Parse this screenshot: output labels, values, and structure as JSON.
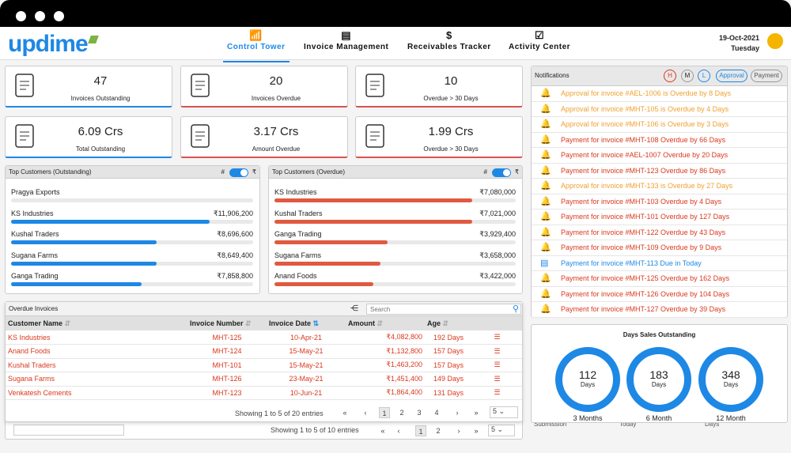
{
  "app": {
    "logo": "updime"
  },
  "nav": [
    {
      "label": "Control Tower",
      "icon": "tower-icon"
    },
    {
      "label": "Invoice Management",
      "icon": "invoice-icon"
    },
    {
      "label": "Receivables Tracker",
      "icon": "hand-money-icon"
    },
    {
      "label": "Activity Center",
      "icon": "checklist-icon"
    }
  ],
  "date": {
    "date": "19-Oct-2021",
    "day": "Tuesday"
  },
  "stats": [
    {
      "value": "47",
      "label": "Invoices Outstanding",
      "color": "#1e88e5"
    },
    {
      "value": "20",
      "label": "Invoices Overdue",
      "color": "#d9534f"
    },
    {
      "value": "10",
      "label": "Overdue > 30 Days",
      "color": "#d9534f"
    },
    {
      "value": "6.09 Crs",
      "label": "Total Outstanding",
      "color": "#1e88e5"
    },
    {
      "value": "3.17 Crs",
      "label": "Amount Overdue",
      "color": "#d9534f"
    },
    {
      "value": "1.99 Crs",
      "label": "Overdue > 30 Days",
      "color": "#d9534f"
    }
  ],
  "top_outstanding": {
    "title": "Top Customers (Outstanding)",
    "toggle_left": "#",
    "toggle_right": "₹",
    "rows": [
      {
        "name": "Pragya Exports",
        "value": "",
        "level": 0
      },
      {
        "name": "KS Industries",
        "value": "₹11,906,200",
        "level": 0.82
      },
      {
        "name": "Kushal Traders",
        "value": "₹8,696,600",
        "level": 0.6
      },
      {
        "name": "Sugana Farms",
        "value": "₹8,649,400",
        "level": 0.6
      },
      {
        "name": "Ganga Trading",
        "value": "₹7,858,800",
        "level": 0.54
      }
    ]
  },
  "top_overdue": {
    "title": "Top Customers (Overdue)",
    "toggle_left": "#",
    "toggle_right": "₹",
    "rows": [
      {
        "name": "KS Industries",
        "value": "₹7,080,000",
        "level": 0.82
      },
      {
        "name": "Kushal Traders",
        "value": "₹7,021,000",
        "level": 0.82
      },
      {
        "name": "Ganga Trading",
        "value": "₹3,929,400",
        "level": 0.47
      },
      {
        "name": "Sugana Farms",
        "value": "₹3,658,000",
        "level": 0.44
      },
      {
        "name": "Anand Foods",
        "value": "₹3,422,000",
        "level": 0.41
      }
    ]
  },
  "overdue_invoices": {
    "title": "Overdue Invoices",
    "search_placeholder": "Search",
    "columns": [
      "Customer Name",
      "Invoice Number",
      "Invoice Date",
      "Amount",
      "Age"
    ],
    "rows": [
      [
        "KS Industries",
        "MHT-125",
        "10-Apr-21",
        "₹4,082,800",
        "192 Days"
      ],
      [
        "Anand Foods",
        "MHT-124",
        "15-May-21",
        "₹1,132,800",
        "157 Days"
      ],
      [
        "Kushal Traders",
        "MHT-101",
        "15-May-21",
        "₹1,463,200",
        "157 Days"
      ],
      [
        "Sugana Farms",
        "MHT-126",
        "23-May-21",
        "₹1,451,400",
        "149 Days"
      ],
      [
        "Venkatesh Cements",
        "MHT-123",
        "10-Jun-21",
        "₹1,864,400",
        "131 Days"
      ]
    ],
    "showing": "Showing 1 to 5 of 20 entries",
    "pages": [
      "1",
      "2",
      "3",
      "4"
    ],
    "page_size": "5"
  },
  "back_table": {
    "showing": "Showing 1 to 5 of 10 entries",
    "pages": [
      "1",
      "2"
    ],
    "page_size": "5",
    "partial_labels": [
      "Submission",
      "Today",
      "Days"
    ]
  },
  "notifications": {
    "title": "Notifications",
    "filters": [
      "H",
      "M",
      "L",
      "Approval",
      "Payment"
    ],
    "items": [
      {
        "text": "Approval for invoice #AEL-1006 is Overdue by 8 Days",
        "color": "#f0a030"
      },
      {
        "text": "Approval for invoice #MHT-105 is Overdue by 4 Days",
        "color": "#f0a030"
      },
      {
        "text": "Approval for invoice #MHT-106 is Overdue by 3 Days",
        "color": "#f0a030"
      },
      {
        "text": "Payment for invoice #MHT-108 Overdue by 66 Days",
        "color": "#d9381e"
      },
      {
        "text": "Payment for invoice #AEL-1007 Overdue by 20 Days",
        "color": "#d9381e"
      },
      {
        "text": "Payment for invoice #MHT-123 Overdue by 86 Days",
        "color": "#d9381e"
      },
      {
        "text": "Approval for invoice #MHT-133 is Overdue by 27 Days",
        "color": "#f0a030"
      },
      {
        "text": "Payment for invoice #MHT-103 Overdue by 4 Days",
        "color": "#d9381e"
      },
      {
        "text": "Payment for invoice #MHT-101 Overdue by 127 Days",
        "color": "#d9381e"
      },
      {
        "text": "Payment for invoice #MHT-122 Overdue by 43 Days",
        "color": "#d9381e"
      },
      {
        "text": "Payment for invoice #MHT-109 Overdue by 9 Days",
        "color": "#d9381e"
      },
      {
        "text": "Payment for invoice #MHT-113 Due in Today",
        "color": "#1e88e5"
      },
      {
        "text": "Payment for invoice #MHT-125 Overdue by 162 Days",
        "color": "#d9381e"
      },
      {
        "text": "Payment for invoice #MHT-126 Overdue by 104 Days",
        "color": "#d9381e"
      },
      {
        "text": "Payment for invoice #MHT-127 Overdue by 39 Days",
        "color": "#d9381e"
      }
    ]
  },
  "dso": {
    "title": "Days Sales Outstanding",
    "rings": [
      {
        "value": "112",
        "unit": "Days",
        "label": "3 Months"
      },
      {
        "value": "183",
        "unit": "Days",
        "label": "6 Month"
      },
      {
        "value": "348",
        "unit": "Days",
        "label": "12 Month"
      }
    ]
  }
}
